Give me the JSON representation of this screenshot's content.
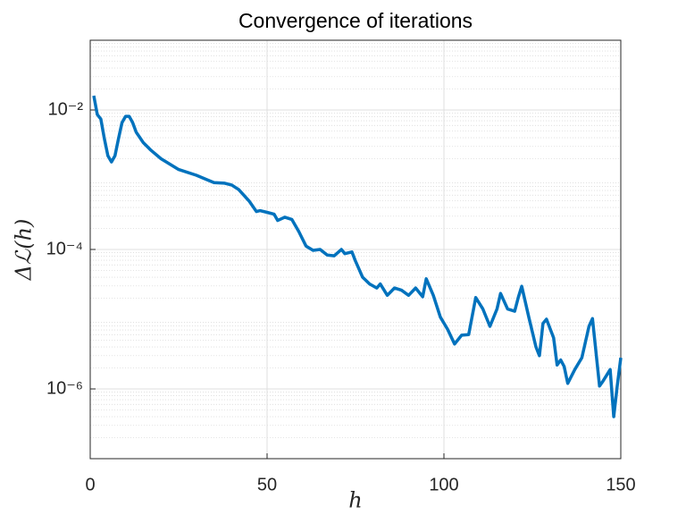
{
  "chart_data": {
    "type": "line",
    "title": "Convergence of iterations",
    "xlabel": "h",
    "ylabel": "Δℒ(h)",
    "x": [
      1,
      2,
      3,
      4,
      5,
      6,
      7,
      8,
      9,
      10,
      11,
      12,
      13,
      15,
      17,
      20,
      25,
      30,
      33,
      35,
      38,
      40,
      42,
      45,
      47,
      48,
      50,
      52,
      53,
      55,
      57,
      59,
      61,
      63,
      65,
      67,
      69,
      71,
      72,
      74,
      75,
      77,
      79,
      81,
      82,
      84,
      86,
      88,
      90,
      92,
      94,
      95,
      97,
      99,
      101,
      103,
      105,
      107,
      109,
      111,
      113,
      115,
      116,
      118,
      120,
      121,
      122,
      124,
      126,
      127,
      128,
      129,
      131,
      132,
      133,
      134,
      135,
      137,
      139,
      141,
      142,
      144,
      145,
      147,
      148,
      149,
      150
    ],
    "series": [
      {
        "name": "ΔL",
        "color": "#0072bd",
        "values": [
          0.016,
          0.0086,
          0.0074,
          0.0039,
          0.0022,
          0.0018,
          0.0022,
          0.0039,
          0.0066,
          0.0081,
          0.0081,
          0.0066,
          0.0048,
          0.0034,
          0.0027,
          0.002,
          0.0014,
          0.00116,
          0.001,
          0.00091,
          0.00089,
          0.00084,
          0.00072,
          0.00049,
          0.00035,
          0.00036,
          0.00034,
          0.00032,
          0.00026,
          0.00029,
          0.00027,
          0.00018,
          0.000112,
          9.7e-05,
          0.0001,
          8.3e-05,
          8.1e-05,
          0.0001,
          8.7e-05,
          9.2e-05,
          6.8e-05,
          4e-05,
          3.2e-05,
          2.8e-05,
          3.2e-05,
          2.2e-05,
          2.8e-05,
          2.6e-05,
          2.2e-05,
          2.8e-05,
          2.1e-05,
          3.8e-05,
          2.2e-05,
          1.07e-05,
          7.2e-06,
          4.4e-06,
          5.9e-06,
          6e-06,
          2.04e-05,
          1.4e-05,
          7.9e-06,
          1.4e-05,
          2.34e-05,
          1.4e-05,
          1.3e-05,
          2.04e-05,
          2.96e-05,
          1.07e-05,
          4e-06,
          3e-06,
          8.7e-06,
          1e-05,
          5.4e-06,
          2.2e-06,
          2.6e-06,
          2.1e-06,
          1.2e-06,
          1.9e-06,
          2.8e-06,
          7.9e-06,
          1.02e-05,
          1.1e-06,
          1.3e-06,
          1.9e-06,
          4e-07,
          1.1e-06,
          2.8e-06
        ]
      }
    ],
    "xlim": [
      0,
      150
    ],
    "xticks": [
      0,
      50,
      100,
      150
    ],
    "ylim": [
      1e-07,
      0.1
    ],
    "yscale": "log",
    "yticks": [
      {
        "value": 1e-06,
        "label": "10⁻⁶"
      },
      {
        "value": 0.0001,
        "label": "10⁻⁴"
      },
      {
        "value": 0.01,
        "label": "10⁻²"
      }
    ],
    "grid": true,
    "minor_grid": true
  }
}
